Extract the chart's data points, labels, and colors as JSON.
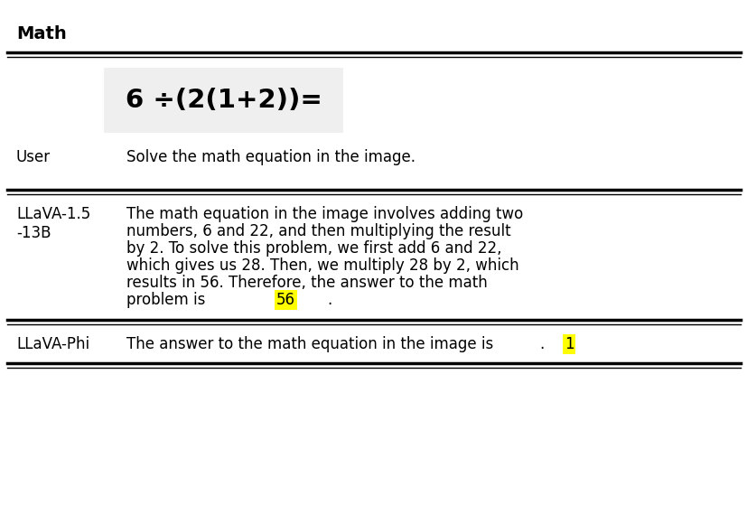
{
  "title": "Math",
  "title_fontsize": 14,
  "bg_color": "#ffffff",
  "equation_text": "6 ÷(2(1+2))=",
  "equation_bg": "#efefef",
  "row1_label": "User",
  "row1_text": "Solve the math equation in the image.",
  "row2_label": "LLaVA-1.5\n-13B",
  "row2_lines": [
    "The math equation in the image involves adding two",
    "numbers, 6 and 22, and then multiplying the result",
    "by 2. To solve this problem, we first add 6 and 22,",
    "which gives us 28. Then, we multiply 28 by 2, which",
    "results in 56. Therefore, the answer to the math",
    [
      "problem is ",
      "56",
      "."
    ]
  ],
  "row3_label": "LLaVA-Phi",
  "row3_line": [
    "The answer to the math equation in the image is ",
    "1",
    "."
  ],
  "highlight_color": "#ffff00",
  "label_fontsize": 12,
  "text_fontsize": 12,
  "line_color": "#000000",
  "fig_width": 8.28,
  "fig_height": 5.8
}
